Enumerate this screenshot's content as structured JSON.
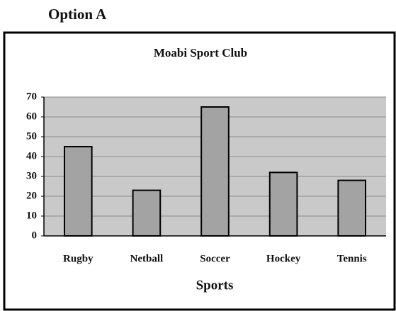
{
  "heading": "Option A",
  "chart_data": {
    "type": "bar",
    "title": "Moabi Sport Club",
    "x_label": "Sports",
    "categories": [
      "Rugby",
      "Netball",
      "Soccer",
      "Hockey",
      "Tennis"
    ],
    "values": [
      45,
      23,
      65,
      32,
      28
    ],
    "color": "#a3a3a3",
    "ylim": [
      0,
      70
    ],
    "yticks": [
      0,
      10,
      20,
      30,
      40,
      50,
      60,
      70
    ],
    "grid": true
  }
}
